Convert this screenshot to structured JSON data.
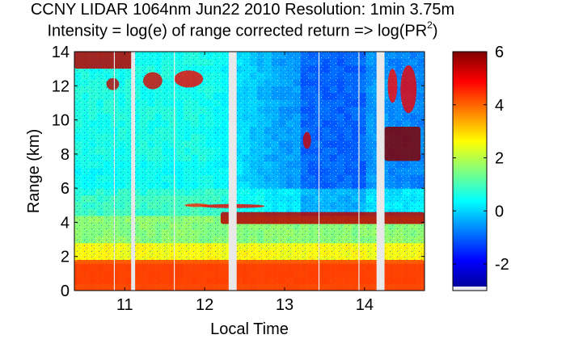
{
  "chart_data": {
    "type": "heatmap",
    "title": "CCNY LIDAR 1064nm Jun22 2010 Resolution: 1min 3.75m",
    "subtitle_prefix": "Intensity = log(e) of range corrected return => log(PR",
    "subtitle_sup": "2",
    "subtitle_suffix": ")",
    "xlabel": "Local Time",
    "ylabel": "Range (km)",
    "xlim": [
      10.37,
      14.75
    ],
    "ylim": [
      0,
      14
    ],
    "x_ticks": [
      11,
      12,
      13,
      14
    ],
    "y_ticks": [
      0,
      2,
      4,
      6,
      8,
      10,
      12,
      14
    ],
    "colorbar": {
      "range": [
        -3,
        6
      ],
      "ticks": [
        -2,
        0,
        2,
        4,
        6
      ],
      "colormap": "jet"
    },
    "data_gaps": [
      {
        "start": 11.08,
        "end": 11.13
      },
      {
        "start": 12.3,
        "end": 12.4
      },
      {
        "start": 14.15,
        "end": 14.25
      }
    ],
    "features": [
      {
        "label": "boundary layer",
        "t_start": 10.37,
        "t_end": 14.75,
        "range_km": [
          0,
          1.8
        ],
        "value": 4.3
      },
      {
        "label": "aerosol layer top",
        "t_start": 12.2,
        "t_end": 14.75,
        "range_km": [
          3.9,
          4.6
        ],
        "value": 5.5
      },
      {
        "label": "cirrus",
        "t_start": 10.37,
        "t_end": 11.1,
        "range_km": [
          13,
          14
        ],
        "value": 5.5
      },
      {
        "label": "cloud",
        "t_start": 14.25,
        "t_end": 14.7,
        "range_km": [
          7.6,
          9.6
        ],
        "value": 6
      }
    ]
  }
}
